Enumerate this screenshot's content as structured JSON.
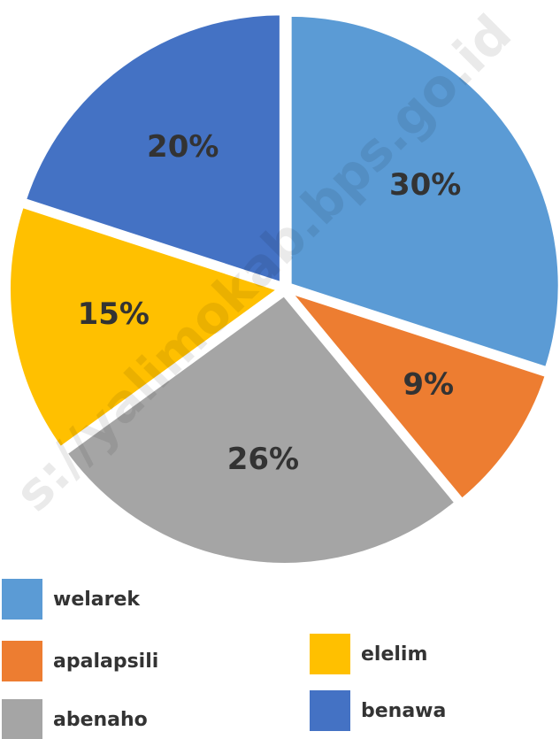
{
  "chart_data": {
    "type": "pie",
    "categories": [
      "welarek",
      "apalapsili",
      "abenaho",
      "elelim",
      "benawa"
    ],
    "values": [
      30,
      9,
      26,
      15,
      20
    ],
    "value_labels": [
      "30%",
      "9%",
      "26%",
      "15%",
      "20%"
    ],
    "colors": [
      "#5B9BD5",
      "#ED7D31",
      "#A5A5A5",
      "#FFC000",
      "#4472C4"
    ],
    "watermark": "s://yalimokab.bps.go.id"
  }
}
